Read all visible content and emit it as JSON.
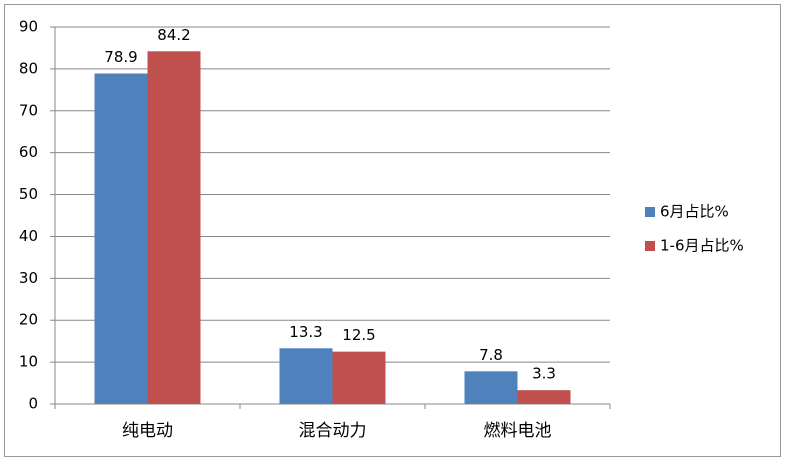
{
  "chart_data": {
    "type": "bar",
    "categories": [
      "纯电动",
      "混合动力",
      "燃料电池"
    ],
    "series": [
      {
        "name": "6月占比%",
        "color": "#4f81bd",
        "values": [
          78.9,
          13.3,
          7.8
        ]
      },
      {
        "name": "1-6月占比%",
        "color": "#c0504d",
        "values": [
          84.2,
          12.5,
          3.3
        ]
      }
    ],
    "ylim": [
      0,
      90
    ],
    "yticks": [
      0,
      10,
      20,
      30,
      40,
      50,
      60,
      70,
      80,
      90
    ],
    "grid": true,
    "legend": "right"
  }
}
